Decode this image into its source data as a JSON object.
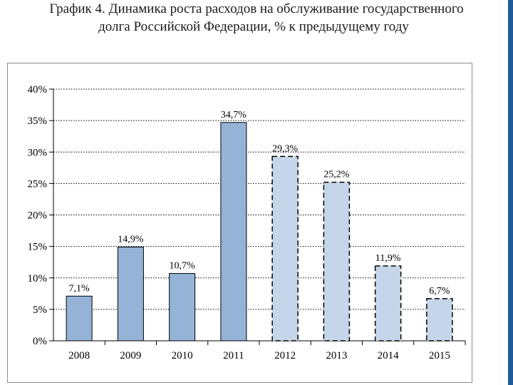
{
  "title": {
    "line1": "График 4. Динамика роста расходов на обслуживание государственного",
    "line2": "долга Российской Федерации, % к предыдущему году"
  },
  "colors": {
    "actual_fill": "#95b3d7",
    "forecast_fill": "#c5d6ea",
    "bar_stroke": "#000000",
    "grid": "#000000",
    "side_accent": "#1f5a96"
  },
  "chart_data": {
    "type": "bar",
    "categories": [
      "2008",
      "2009",
      "2010",
      "2011",
      "2012",
      "2013",
      "2014",
      "2015"
    ],
    "values": [
      7.1,
      14.9,
      10.7,
      34.7,
      29.3,
      25.2,
      11.9,
      6.7
    ],
    "value_labels": [
      "7,1%",
      "14,9%",
      "10,7%",
      "34,7%",
      "29,3%",
      "25,2%",
      "11,9%",
      "6,7%"
    ],
    "bar_style": [
      "solid",
      "solid",
      "solid",
      "solid",
      "dashed",
      "dashed",
      "dashed",
      "dashed"
    ],
    "y_ticks": [
      0,
      5,
      10,
      15,
      20,
      25,
      30,
      35,
      40
    ],
    "y_tick_labels": [
      "0%",
      "5%",
      "10%",
      "15%",
      "20%",
      "25%",
      "30%",
      "35%",
      "40%"
    ],
    "ylim": [
      0,
      40
    ],
    "grid": "horizontal dotted",
    "legend": "none",
    "xlabel": "",
    "ylabel": ""
  }
}
